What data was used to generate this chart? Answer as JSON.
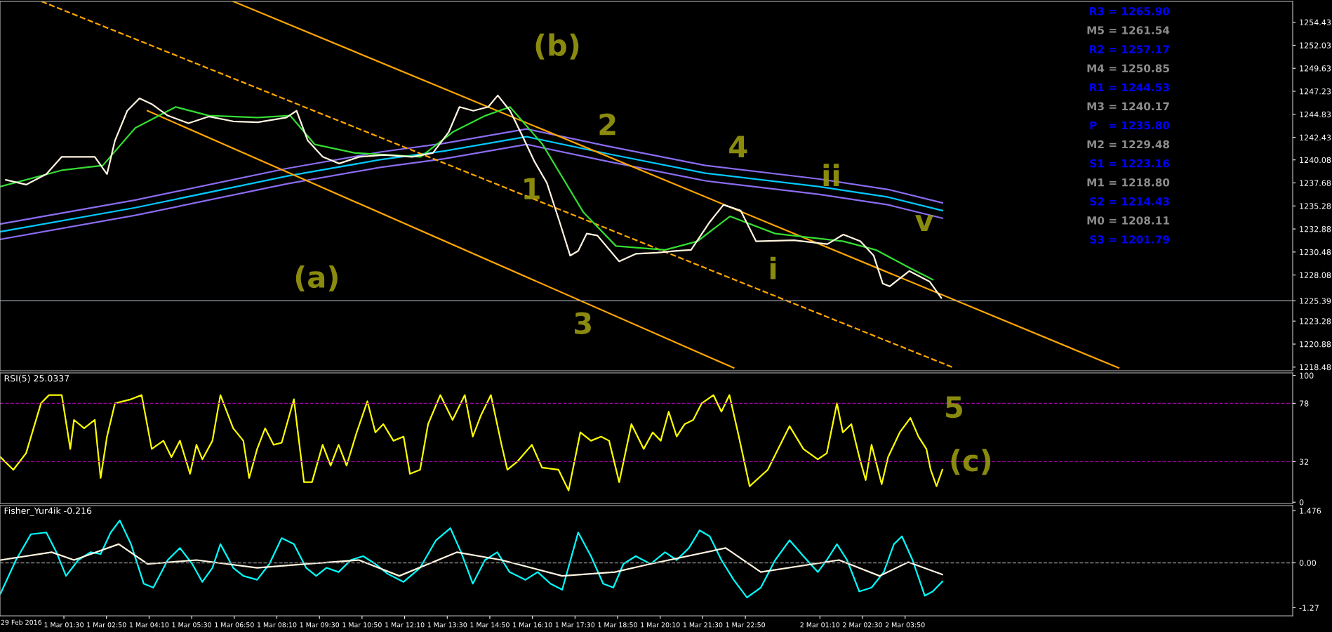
{
  "chart_data": [
    {
      "type": "line",
      "xlim": [
        "2016-02-29T23:30",
        "2016-03-02T15:58"
      ],
      "ylim": [
        1218.1,
        1256.6
      ],
      "yticks": [
        1218.48,
        1220.88,
        1223.28,
        1225.39,
        1228.08,
        1230.48,
        1232.88,
        1235.28,
        1237.68,
        1240.08,
        1242.43,
        1244.83,
        1247.23,
        1249.63,
        1252.03,
        1254.43
      ],
      "tick_labels": "y",
      "grid": false,
      "series": [
        {
          "color": "#00c8ff",
          "x": [
            "2016-02-29T23:31",
            "2016-03-01T03:44",
            "2016-03-01T08:30",
            "2016-03-01T11:24",
            "2016-03-01T13:24",
            "2016-03-01T15:59",
            "2016-03-01T18:33",
            "2016-03-01T21:35",
            "2016-03-02T01:07",
            "2016-03-02T03:18",
            "2016-03-02T05:00"
          ],
          "values": [
            1232.6,
            1235.1,
            1238.4,
            1240.1,
            1241.0,
            1242.5,
            1240.7,
            1238.7,
            1237.3,
            1236.2,
            1234.8
          ]
        },
        {
          "color": "#8a6cf0",
          "x": [
            "2016-02-29T23:31",
            "2016-03-01T03:44",
            "2016-03-01T08:30",
            "2016-03-01T11:24",
            "2016-03-01T13:24",
            "2016-03-01T15:59",
            "2016-03-01T18:33",
            "2016-03-01T21:35",
            "2016-03-02T01:07",
            "2016-03-02T03:18",
            "2016-03-02T05:00"
          ],
          "values": [
            1233.4,
            1235.9,
            1239.2,
            1240.9,
            1241.8,
            1243.3,
            1241.5,
            1239.5,
            1238.1,
            1237.0,
            1235.6
          ]
        },
        {
          "color": "#8a6cf0",
          "x": [
            "2016-02-29T23:31",
            "2016-03-01T03:44",
            "2016-03-01T08:30",
            "2016-03-01T11:24",
            "2016-03-01T13:24",
            "2016-03-01T15:59",
            "2016-03-01T18:33",
            "2016-03-01T21:35",
            "2016-03-02T01:07",
            "2016-03-02T03:18",
            "2016-03-02T05:00"
          ],
          "values": [
            1231.8,
            1234.3,
            1237.6,
            1239.3,
            1240.2,
            1241.7,
            1239.9,
            1237.9,
            1236.5,
            1235.4,
            1234.0
          ]
        },
        {
          "color": "#ffa500",
          "x": [
            "2016-03-01T06:48",
            "2016-03-02T10:31"
          ],
          "values": [
            1256.6,
            1218.4
          ]
        },
        {
          "color": "#ffa500",
          "x": [
            "2016-03-01T04:07",
            "2016-03-01T22:28"
          ],
          "values": [
            1245.2,
            1218.4
          ]
        },
        {
          "color": "#ffa500",
          "line_style": "dashed",
          "x": [
            "2016-03-01T00:48",
            "2016-03-02T05:22"
          ],
          "values": [
            1256.6,
            1218.4
          ]
        },
        {
          "color": "#33dd33",
          "x": [
            "2016-02-29T23:31",
            "2016-03-01T01:26",
            "2016-03-01T02:43",
            "2016-03-01T03:44",
            "2016-03-01T05:00",
            "2016-03-01T06:02",
            "2016-03-01T07:34",
            "2016-03-01T08:35",
            "2016-03-01T09:21",
            "2016-03-01T10:37",
            "2016-03-01T12:40",
            "2016-03-01T13:41",
            "2016-03-01T14:42",
            "2016-03-01T15:28",
            "2016-03-01T16:29",
            "2016-03-01T17:46",
            "2016-03-01T18:47",
            "2016-03-01T20:19",
            "2016-03-01T21:20",
            "2016-03-01T22:21",
            "2016-03-01T23:46",
            "2016-03-02T01:54",
            "2016-03-02T02:55",
            "2016-03-02T03:56",
            "2016-03-02T04:42"
          ],
          "values": [
            1237.3,
            1239.0,
            1239.5,
            1243.4,
            1245.6,
            1244.7,
            1244.5,
            1244.7,
            1241.7,
            1240.8,
            1240.4,
            1243.0,
            1244.7,
            1245.6,
            1241.7,
            1234.6,
            1231.1,
            1230.7,
            1231.6,
            1234.2,
            1232.4,
            1231.6,
            1230.7,
            1228.9,
            1227.6
          ]
        },
        {
          "color": "#fff5e0",
          "x": [
            "2016-02-29T23:41",
            "2016-03-01T00:19",
            "2016-03-01T00:57",
            "2016-03-01T01:26",
            "2016-03-01T01:57",
            "2016-03-01T02:28",
            "2016-03-01T02:51",
            "2016-03-01T03:06",
            "2016-03-01T03:29",
            "2016-03-01T03:52",
            "2016-03-01T04:15",
            "2016-03-01T04:45",
            "2016-03-01T05:24",
            "2016-03-01T06:02",
            "2016-03-01T06:48",
            "2016-03-01T07:34",
            "2016-03-01T08:28",
            "2016-03-01T08:47",
            "2016-03-01T09:08",
            "2016-03-01T09:36",
            "2016-03-01T10:07",
            "2016-03-01T10:45",
            "2016-03-01T11:31",
            "2016-03-01T12:24",
            "2016-03-01T13:03",
            "2016-03-01T13:33",
            "2016-03-01T13:53",
            "2016-03-01T14:19",
            "2016-03-01T14:47",
            "2016-03-01T15:05",
            "2016-03-01T15:28",
            "2016-03-01T15:51",
            "2016-03-01T16:14",
            "2016-03-01T16:37",
            "2016-03-01T17:00",
            "2016-03-01T17:21",
            "2016-03-01T17:36",
            "2016-03-01T17:52",
            "2016-03-01T18:12",
            "2016-03-01T18:53",
            "2016-03-01T19:25",
            "2016-03-01T20:04",
            "2016-03-01T20:42",
            "2016-03-01T21:08",
            "2016-03-01T21:43",
            "2016-03-01T22:09",
            "2016-03-01T22:41",
            "2016-03-01T23:10",
            "2016-03-02T00:21",
            "2016-03-02T01:24",
            "2016-03-02T01:54",
            "2016-03-02T02:26",
            "2016-03-02T02:51",
            "2016-03-02T03:08",
            "2016-03-02T03:21",
            "2016-03-02T03:58",
            "2016-03-02T04:36",
            "2016-03-02T04:58"
          ],
          "values": [
            1238.0,
            1237.5,
            1238.6,
            1240.4,
            1240.4,
            1240.4,
            1238.6,
            1242.1,
            1245.2,
            1246.5,
            1245.9,
            1244.7,
            1243.9,
            1244.6,
            1244.1,
            1244.0,
            1244.5,
            1245.2,
            1242.1,
            1240.4,
            1239.7,
            1240.4,
            1240.6,
            1240.4,
            1240.8,
            1243.0,
            1245.6,
            1245.2,
            1245.6,
            1246.8,
            1245.2,
            1242.6,
            1239.9,
            1237.7,
            1233.8,
            1230.1,
            1230.6,
            1232.4,
            1232.2,
            1229.5,
            1230.3,
            1230.4,
            1230.6,
            1230.7,
            1233.6,
            1235.4,
            1234.8,
            1231.6,
            1231.7,
            1231.3,
            1232.3,
            1231.6,
            1230.1,
            1227.2,
            1226.9,
            1228.5,
            1227.4,
            1225.7
          ]
        }
      ],
      "ref_lines": [
        {
          "axis": "y",
          "value": 1225.39,
          "color": "#a0a8b0"
        }
      ],
      "annotations": [
        "R3 = 1265.90",
        "M5 = 1261.54",
        "R2 = 1257.17",
        "M4 = 1250.85",
        "R1 = 1244.53",
        "M3 = 1240.17",
        "P   = 1235.80",
        "M2 = 1229.48",
        "S1 = 1223.16",
        "M1 = 1218.80",
        "S2 = 1214.43",
        "M0 = 1208.11",
        "S3 = 1201.79",
        "(b)",
        "(a)",
        "1",
        "2",
        "3",
        "4",
        "i",
        "ii",
        "v"
      ]
    },
    {
      "type": "line",
      "title": "RSI(5) 25.0337",
      "xlim": [
        "2016-02-29T23:30",
        "2016-03-02T15:58"
      ],
      "ylim": [
        -1,
        102
      ],
      "yticks": [
        0,
        32,
        78,
        100
      ],
      "tick_labels": "y",
      "grid": false,
      "series": [
        {
          "color": "#ffff00",
          "x": [
            "2016-02-29T23:31",
            "2016-02-29T23:55",
            "2016-03-01T00:19",
            "2016-03-01T00:47",
            "2016-03-01T01:02",
            "2016-03-01T01:26",
            "2016-03-01T01:42",
            "2016-03-01T01:49",
            "2016-03-01T02:08",
            "2016-03-01T02:28",
            "2016-03-01T02:39",
            "2016-03-01T02:51",
            "2016-03-01T03:06",
            "2016-03-01T03:36",
            "2016-03-01T03:56",
            "2016-03-01T04:15",
            "2016-03-01T04:26",
            "2016-03-01T04:37",
            "2016-03-01T04:52",
            "2016-03-01T05:08",
            "2016-03-01T05:27",
            "2016-03-01T05:39",
            "2016-03-01T05:50",
            "2016-03-01T06:09",
            "2016-03-01T06:24",
            "2016-03-01T06:48",
            "2016-03-01T07:07",
            "2016-03-01T07:18",
            "2016-03-01T07:33",
            "2016-03-01T07:48",
            "2016-03-01T08:04",
            "2016-03-01T08:19",
            "2016-03-01T08:42",
            "2016-03-01T09:01",
            "2016-03-01T09:16",
            "2016-03-01T09:36",
            "2016-03-01T09:51",
            "2016-03-01T10:06",
            "2016-03-01T10:21",
            "2016-03-01T10:40",
            "2016-03-01T11:00",
            "2016-03-01T11:15",
            "2016-03-01T11:30",
            "2016-03-01T11:49",
            "2016-03-01T12:08",
            "2016-03-01T12:20",
            "2016-03-01T12:39",
            "2016-03-01T12:54",
            "2016-03-01T13:17",
            "2016-03-01T13:40",
            "2016-03-01T14:03",
            "2016-03-01T14:18",
            "2016-03-01T14:33",
            "2016-03-01T14:52",
            "2016-03-01T15:12",
            "2016-03-01T15:23",
            "2016-03-01T15:42",
            "2016-03-01T16:09",
            "2016-03-01T16:28",
            "2016-03-01T16:59",
            "2016-03-01T17:18",
            "2016-03-01T17:40",
            "2016-03-01T18:00",
            "2016-03-01T18:19",
            "2016-03-01T18:34",
            "2016-03-01T18:53",
            "2016-03-01T19:16",
            "2016-03-01T19:39",
            "2016-03-01T19:56",
            "2016-03-01T20:11",
            "2016-03-01T20:26",
            "2016-03-01T20:41",
            "2016-03-01T20:56",
            "2016-03-01T21:12",
            "2016-03-01T21:28",
            "2016-03-01T21:50",
            "2016-03-01T22:05",
            "2016-03-01T22:20",
            "2016-03-01T22:36",
            "2016-03-01T22:58",
            "2016-03-01T23:32",
            "2016-03-02T00:13",
            "2016-03-02T00:39",
            "2016-03-02T01:06",
            "2016-03-02T01:23",
            "2016-03-02T01:42",
            "2016-03-02T01:53",
            "2016-03-02T02:09",
            "2016-03-02T02:24",
            "2016-03-02T02:36",
            "2016-03-02T02:47",
            "2016-03-02T03:06",
            "2016-03-02T03:18",
            "2016-03-02T03:40",
            "2016-03-02T04:00",
            "2016-03-02T04:15",
            "2016-03-02T04:30",
            "2016-03-02T04:38",
            "2016-03-02T04:49",
            "2016-03-02T05:00"
          ],
          "values": [
            35.5,
            25.6,
            38.7,
            78.0,
            84.5,
            84.5,
            42.0,
            64.9,
            58.3,
            64.9,
            19.1,
            51.8,
            78.0,
            81.2,
            84.5,
            42.0,
            45.3,
            48.5,
            35.5,
            48.5,
            22.4,
            45.3,
            33.8,
            48.5,
            84.5,
            58.3,
            48.5,
            19.1,
            42.0,
            58.3,
            45.3,
            46.9,
            81.2,
            15.8,
            15.8,
            45.3,
            28.9,
            45.3,
            28.9,
            55.1,
            79.6,
            55.1,
            61.6,
            48.5,
            51.8,
            22.4,
            25.6,
            61.6,
            84.5,
            64.9,
            84.5,
            51.8,
            68.2,
            84.5,
            45.3,
            25.6,
            32.2,
            45.3,
            27.3,
            25.6,
            9.3,
            55.1,
            48.5,
            51.8,
            48.5,
            15.8,
            61.6,
            42.0,
            55.1,
            48.5,
            71.4,
            51.8,
            61.6,
            64.9,
            78.0,
            84.5,
            71.4,
            84.5,
            55.1,
            12.6,
            25.6,
            60.0,
            42.0,
            33.8,
            38.7,
            78.0,
            55.1,
            61.6,
            35.5,
            17.5,
            45.3,
            14.2,
            35.5,
            55.1,
            66.5,
            51.8,
            42.0,
            25.6,
            12.6,
            25.6
          ]
        }
      ],
      "ref_lines": [
        {
          "axis": "y",
          "value": 78,
          "color": "#a000a0",
          "line_style": "dashed"
        },
        {
          "axis": "y",
          "value": 32,
          "color": "#a000a0",
          "line_style": "dashed"
        }
      ],
      "annotations": [
        "5",
        "(c)"
      ]
    },
    {
      "type": "line",
      "title": "Fisher_Yur4ik -0.216",
      "xlim": [
        "2016-02-29T23:30",
        "2016-03-02T15:58"
      ],
      "ylim": [
        -1.5,
        1.62
      ],
      "yticks": [
        {
          "value": -1.27,
          "label": "-1.27"
        },
        {
          "value": 0,
          "label": "0.00"
        },
        1.476
      ],
      "annotations": [
        "29 Feb 2016"
      ],
      "xticks": [
        {
          "value": "2016-03-01T01:30",
          "label": "1 Mar 01:30"
        },
        {
          "value": "2016-03-01T02:50",
          "label": "1 Mar 02:50"
        },
        {
          "value": "2016-03-01T04:10",
          "label": "1 Mar 04:10"
        },
        {
          "value": "2016-03-01T05:30",
          "label": "1 Mar 05:30"
        },
        {
          "value": "2016-03-01T06:50",
          "label": "1 Mar 06:50"
        },
        {
          "value": "2016-03-01T08:10",
          "label": "1 Mar 08:10"
        },
        {
          "value": "2016-03-01T09:30",
          "label": "1 Mar 09:30"
        },
        {
          "value": "2016-03-01T10:50",
          "label": "1 Mar 10:50"
        },
        {
          "value": "2016-03-01T12:10",
          "label": "1 Mar 12:10"
        },
        {
          "value": "2016-03-01T13:30",
          "label": "1 Mar 13:30"
        },
        {
          "value": "2016-03-01T14:50",
          "label": "1 Mar 14:50"
        },
        {
          "value": "2016-03-01T16:10",
          "label": "1 Mar 16:10"
        },
        {
          "value": "2016-03-01T17:30",
          "label": "1 Mar 17:30"
        },
        {
          "value": "2016-03-01T18:50",
          "label": "1 Mar 18:50"
        },
        {
          "value": "2016-03-01T20:10",
          "label": "1 Mar 20:10"
        },
        {
          "value": "2016-03-01T21:30",
          "label": "1 Mar 21:30"
        },
        {
          "value": "2016-03-01T22:50",
          "label": "1 Mar 22:50"
        },
        {
          "value": "2016-03-02T01:10",
          "label": "2 Mar 01:10"
        },
        {
          "value": "2016-03-02T02:30",
          "label": "2 Mar 02:30"
        },
        {
          "value": "2016-03-02T03:50",
          "label": "2 Mar 03:50"
        }
      ],
      "grid": false,
      "series": [
        {
          "color": "#00ffff",
          "x": [
            "2016-02-29T23:31",
            "2016-03-01T00:00",
            "2016-03-01T00:28",
            "2016-03-01T00:57",
            "2016-03-01T01:16",
            "2016-03-01T01:34",
            "2016-03-01T01:57",
            "2016-03-01T02:20",
            "2016-03-01T02:39",
            "2016-03-01T02:58",
            "2016-03-01T03:15",
            "2016-03-01T03:36",
            "2016-03-01T04:00",
            "2016-03-01T04:18",
            "2016-03-01T04:45",
            "2016-03-01T05:08",
            "2016-03-01T05:31",
            "2016-03-01T05:50",
            "2016-03-01T06:09",
            "2016-03-01T06:24",
            "2016-03-01T06:48",
            "2016-03-01T07:07",
            "2016-03-01T07:33",
            "2016-03-01T07:56",
            "2016-03-01T08:19",
            "2016-03-01T08:42",
            "2016-03-01T09:05",
            "2016-03-01T09:24",
            "2016-03-01T09:43",
            "2016-03-01T10:06",
            "2016-03-01T10:29",
            "2016-03-01T10:52",
            "2016-03-01T11:15",
            "2016-03-01T11:38",
            "2016-03-01T12:08",
            "2016-03-01T12:39",
            "2016-03-01T13:09",
            "2016-03-01T13:36",
            "2016-03-01T13:56",
            "2016-03-01T14:18",
            "2016-03-01T14:41",
            "2016-03-01T15:04",
            "2016-03-01T15:27",
            "2016-03-01T15:57",
            "2016-03-01T16:20",
            "2016-03-01T16:44",
            "2016-03-01T17:06",
            "2016-03-01T17:36",
            "2016-03-01T18:00",
            "2016-03-01T18:23",
            "2016-03-01T18:42",
            "2016-03-01T19:01",
            "2016-03-01T19:24",
            "2016-03-01T19:52",
            "2016-03-01T20:19",
            "2016-03-01T20:41",
            "2016-03-01T21:04",
            "2016-03-01T21:24",
            "2016-03-01T21:43",
            "2016-03-01T22:05",
            "2016-03-01T22:28",
            "2016-03-01T22:53",
            "2016-03-01T23:19",
            "2016-03-01T23:46",
            "2016-03-02T00:13",
            "2016-03-02T00:39",
            "2016-03-02T01:06",
            "2016-03-02T01:23",
            "2016-03-02T01:42",
            "2016-03-02T02:01",
            "2016-03-02T02:24",
            "2016-03-02T02:47",
            "2016-03-02T03:10",
            "2016-03-02T03:29",
            "2016-03-02T03:44",
            "2016-03-02T04:04",
            "2016-03-02T04:27",
            "2016-03-02T04:42",
            "2016-03-02T05:00"
          ],
          "values": [
            -0.87,
            0.08,
            0.81,
            0.86,
            0.3,
            -0.37,
            0.08,
            0.3,
            0.25,
            0.86,
            1.2,
            0.53,
            -0.59,
            -0.7,
            0.08,
            0.42,
            -0.03,
            -0.54,
            -0.14,
            0.53,
            -0.14,
            -0.37,
            -0.48,
            -0.03,
            0.7,
            0.53,
            -0.14,
            -0.37,
            -0.14,
            -0.26,
            0.08,
            0.19,
            -0.03,
            -0.31,
            -0.54,
            -0.14,
            0.64,
            0.98,
            0.3,
            -0.59,
            0.08,
            0.3,
            -0.26,
            -0.48,
            -0.26,
            -0.59,
            -0.76,
            0.86,
            0.19,
            -0.59,
            -0.7,
            -0.03,
            0.19,
            -0.03,
            0.3,
            0.08,
            0.42,
            0.92,
            0.75,
            0.08,
            -0.48,
            -0.98,
            -0.7,
            0.08,
            0.64,
            0.19,
            -0.26,
            0.08,
            0.53,
            0.08,
            -0.81,
            -0.7,
            -0.26,
            0.53,
            0.75,
            0.08,
            -0.93,
            -0.81,
            -0.53
          ]
        },
        {
          "color": "#fff5e0",
          "x": [
            "2016-02-29T23:31",
            "2016-03-01T01:07",
            "2016-03-01T01:49",
            "2016-03-01T03:13",
            "2016-03-01T04:07",
            "2016-03-01T05:39",
            "2016-03-01T07:33",
            "2016-03-01T09:05",
            "2016-03-01T10:44",
            "2016-03-01T12:00",
            "2016-03-01T13:48",
            "2016-03-01T15:12",
            "2016-03-01T17:06",
            "2016-03-01T18:45",
            "2016-03-01T19:52",
            "2016-03-01T22:13",
            "2016-03-01T23:19",
            "2016-03-02T01:46",
            "2016-03-02T03:02",
            "2016-03-02T03:56",
            "2016-03-02T05:00"
          ],
          "values": [
            0.08,
            0.3,
            0.08,
            0.53,
            -0.03,
            0.08,
            -0.14,
            -0.03,
            0.08,
            -0.37,
            0.3,
            0.08,
            -0.37,
            -0.26,
            -0.03,
            0.42,
            -0.26,
            0.08,
            -0.37,
            0.02,
            -0.33
          ]
        }
      ],
      "ref_lines": [
        {
          "axis": "y",
          "value": 0,
          "color": "#808080",
          "line_style": "dashed"
        }
      ]
    }
  ]
}
